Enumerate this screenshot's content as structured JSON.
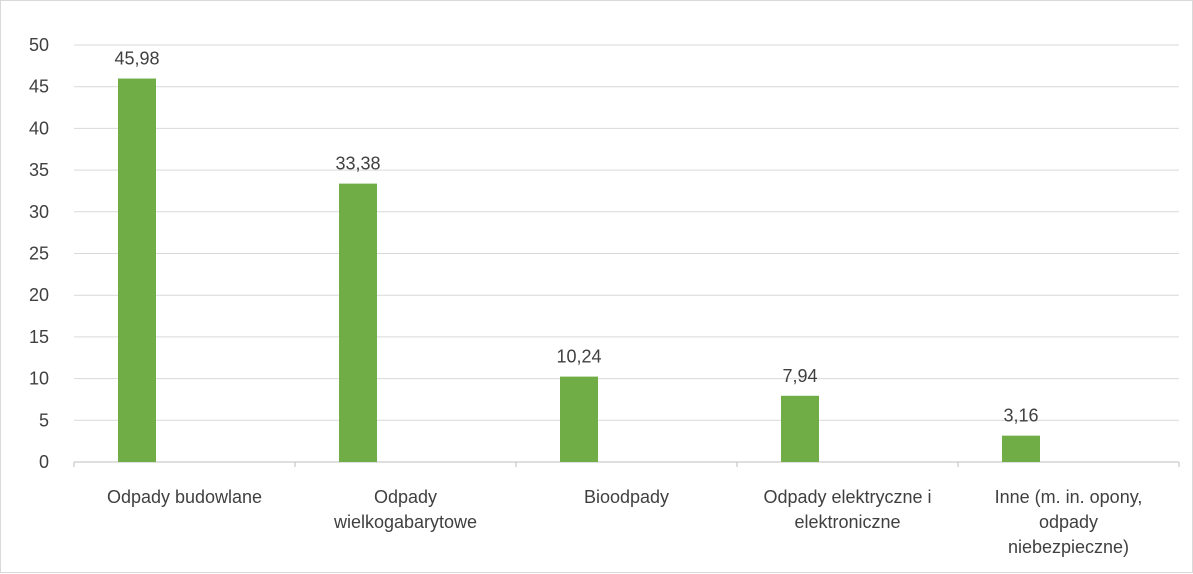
{
  "chart_data": {
    "type": "bar",
    "categories": [
      "Odpady budowlane",
      "Odpady wielkogabarytowe",
      "Bioodpady",
      "Odpady elektryczne i elektroniczne",
      "Inne (m. in. opony, odpady niebezpieczne)"
    ],
    "category_lines": [
      [
        "Odpady budowlane"
      ],
      [
        "Odpady",
        "wielkogabarytowe"
      ],
      [
        "Bioodpady"
      ],
      [
        "Odpady elektryczne i",
        "elektroniczne"
      ],
      [
        "Inne (m. in. opony,",
        "odpady",
        "niebezpieczne)"
      ]
    ],
    "values": [
      45.98,
      33.38,
      10.24,
      7.94,
      3.16
    ],
    "data_labels": [
      "45,98",
      "33,38",
      "10,24",
      "7,94",
      "3,16"
    ],
    "y_ticks": [
      0,
      5,
      10,
      15,
      20,
      25,
      30,
      35,
      40,
      45,
      50
    ],
    "ylim": [
      0,
      50
    ],
    "title": "",
    "xlabel": "",
    "ylabel": "",
    "grid": true,
    "legend": "none",
    "colors": {
      "bar": "#70ad47",
      "grid": "#d9d9d9",
      "axis": "#bfbfbf",
      "text": "#404040",
      "border": "#d9d9d9"
    }
  }
}
